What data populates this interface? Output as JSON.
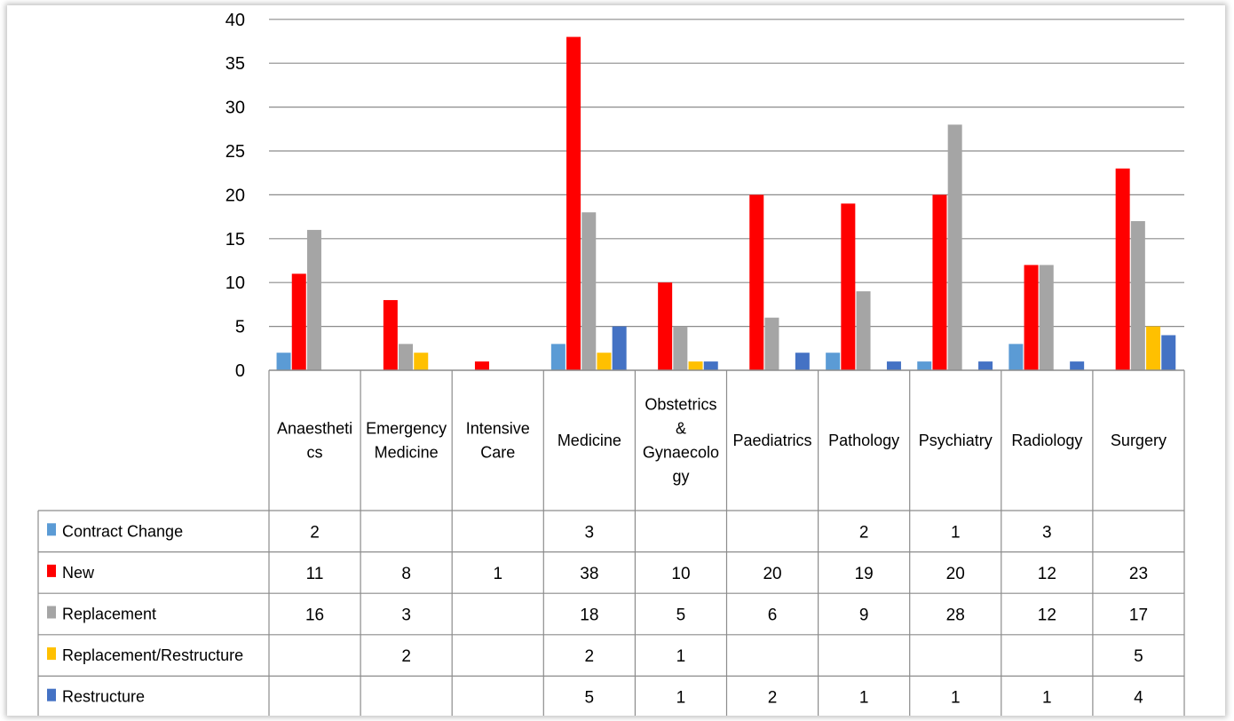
{
  "chart_data": {
    "type": "bar",
    "categories": [
      [
        "Anaestheti",
        "cs"
      ],
      [
        "Emergency",
        "Medicine"
      ],
      [
        "Intensive",
        "Care"
      ],
      [
        "Medicine"
      ],
      [
        "Obstetrics",
        "&",
        "Gynaecolo",
        "gy"
      ],
      [
        "Paediatrics"
      ],
      [
        "Pathology"
      ],
      [
        "Psychiatry"
      ],
      [
        "Radiology"
      ],
      [
        "Surgery"
      ]
    ],
    "series": [
      {
        "name": "Contract Change",
        "color": "#5b9bd5",
        "values": [
          2,
          null,
          null,
          3,
          null,
          null,
          2,
          1,
          3,
          null
        ]
      },
      {
        "name": "New",
        "color": "#ff0000",
        "values": [
          11,
          8,
          1,
          38,
          10,
          20,
          19,
          20,
          12,
          23
        ]
      },
      {
        "name": "Replacement",
        "color": "#a5a5a5",
        "values": [
          16,
          3,
          null,
          18,
          5,
          6,
          9,
          28,
          12,
          17
        ]
      },
      {
        "name": "Replacement/Restructure",
        "color": "#ffc000",
        "values": [
          null,
          2,
          null,
          2,
          1,
          null,
          null,
          null,
          null,
          5
        ]
      },
      {
        "name": "Restructure",
        "color": "#4472c4",
        "values": [
          null,
          null,
          null,
          5,
          1,
          2,
          1,
          1,
          1,
          4
        ]
      }
    ],
    "yticks": [
      "0",
      "5",
      "10",
      "15",
      "20",
      "25",
      "30",
      "35",
      "40"
    ],
    "ylim": [
      0,
      40
    ],
    "grid": true,
    "legend": "data-table"
  }
}
